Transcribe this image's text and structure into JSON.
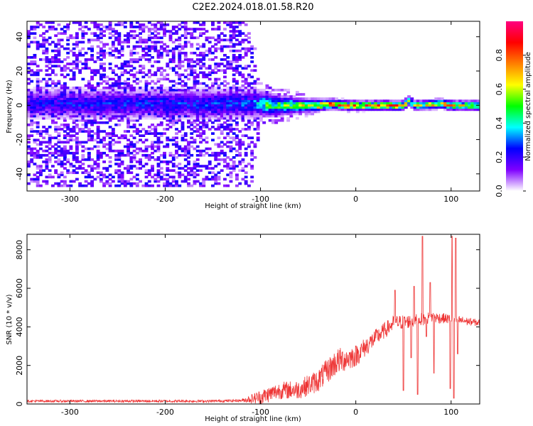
{
  "figure_title": "C2E2.2024.018.01.58.R20",
  "chart_data": [
    {
      "type": "heatmap",
      "title": "C2E2.2024.018.01.58.R20",
      "xlabel": "Height of straight line (km)",
      "ylabel": "Frequency (Hz)",
      "xlim": [
        -345,
        130
      ],
      "ylim": [
        -50,
        49
      ],
      "x_ticks": [
        -300,
        -200,
        -100,
        0,
        100
      ],
      "x_tick_labels": [
        "-300",
        "-200",
        "-100",
        "0",
        "100"
      ],
      "y_ticks": [
        -40,
        -20,
        0,
        20,
        40
      ],
      "y_tick_labels": [
        "-40",
        "-20",
        "0",
        "20",
        "40"
      ],
      "colorbar": {
        "label": "Normalized spectral amplitude",
        "range": [
          0,
          1
        ],
        "ticks": [
          0.0,
          0.2,
          0.4,
          0.6,
          0.8
        ],
        "tick_labels": [
          "0.0",
          "0.2",
          "0.4",
          "0.6",
          "0.8"
        ],
        "colormap": [
          "#ffffff",
          "#7f00ff",
          "#0000ff",
          "#00ffff",
          "#00ff00",
          "#ffff00",
          "#ff7f00",
          "#ff0000",
          "#ff0080"
        ]
      },
      "band": {
        "center_hz": [
          {
            "x": -345,
            "y": 1
          },
          {
            "x": -100,
            "y": 1
          },
          {
            "x": -80,
            "y": 0
          },
          {
            "x": -40,
            "y": 0
          },
          {
            "x": -25,
            "y": 1
          },
          {
            "x": -10,
            "y": 0
          },
          {
            "x": 50,
            "y": 0
          },
          {
            "x": 56,
            "y": 3
          },
          {
            "x": 62,
            "y": 0
          },
          {
            "x": 90,
            "y": 1
          },
          {
            "x": 100,
            "y": 0
          },
          {
            "x": 130,
            "y": 0
          }
        ],
        "core_halfwidth_hz": [
          {
            "x": -345,
            "y": 6
          },
          {
            "x": -110,
            "y": 6
          },
          {
            "x": -60,
            "y": 3
          },
          {
            "x": -20,
            "y": 2
          },
          {
            "x": 130,
            "y": 2
          }
        ],
        "peak_amplitude": [
          {
            "x": -345,
            "y": 0.25
          },
          {
            "x": -110,
            "y": 0.3
          },
          {
            "x": -90,
            "y": 0.55
          },
          {
            "x": -60,
            "y": 0.65
          },
          {
            "x": -30,
            "y": 0.85
          },
          {
            "x": 0,
            "y": 0.85
          },
          {
            "x": 50,
            "y": 0.8
          },
          {
            "x": 56,
            "y": 0.6
          },
          {
            "x": 100,
            "y": 0.8
          },
          {
            "x": 130,
            "y": 0.7
          }
        ],
        "scatter_halfwidth_hz": [
          {
            "x": -345,
            "y": 49
          },
          {
            "x": -110,
            "y": 49
          },
          {
            "x": -100,
            "y": 12
          },
          {
            "x": -60,
            "y": 8
          },
          {
            "x": -40,
            "y": 4
          },
          {
            "x": 130,
            "y": 3
          }
        ],
        "scatter_amplitude": [
          {
            "x": -345,
            "y": 0.12
          },
          {
            "x": -110,
            "y": 0.12
          },
          {
            "x": -90,
            "y": 0.08
          },
          {
            "x": -40,
            "y": 0.03
          },
          {
            "x": 130,
            "y": 0.02
          }
        ]
      }
    },
    {
      "type": "line",
      "xlabel": "Height of straight line (km)",
      "ylabel": "SNR (10 * v/v)",
      "xlim": [
        -345,
        130
      ],
      "ylim": [
        0,
        8800
      ],
      "x_ticks": [
        -300,
        -200,
        -100,
        0,
        100
      ],
      "x_tick_labels": [
        "-300",
        "-200",
        "-100",
        "0",
        "100"
      ],
      "y_ticks": [
        0,
        2000,
        4000,
        6000,
        8000
      ],
      "y_tick_labels": [
        "0",
        "2000",
        "4000",
        "6000",
        "8000"
      ],
      "series": [
        {
          "color": "#ee3333",
          "trend": [
            {
              "x": -345,
              "y": 150
            },
            {
              "x": -250,
              "y": 150
            },
            {
              "x": -150,
              "y": 150
            },
            {
              "x": -120,
              "y": 180
            },
            {
              "x": -100,
              "y": 350
            },
            {
              "x": -80,
              "y": 700
            },
            {
              "x": -60,
              "y": 750
            },
            {
              "x": -40,
              "y": 1200
            },
            {
              "x": -20,
              "y": 2200
            },
            {
              "x": 0,
              "y": 2500
            },
            {
              "x": 20,
              "y": 3400
            },
            {
              "x": 40,
              "y": 4200
            },
            {
              "x": 60,
              "y": 4300
            },
            {
              "x": 80,
              "y": 4500
            },
            {
              "x": 100,
              "y": 4400
            },
            {
              "x": 130,
              "y": 4200
            }
          ],
          "noise_amplitude": [
            {
              "x": -345,
              "y": 60
            },
            {
              "x": -120,
              "y": 70
            },
            {
              "x": -100,
              "y": 400
            },
            {
              "x": -60,
              "y": 500
            },
            {
              "x": -20,
              "y": 700
            },
            {
              "x": 20,
              "y": 450
            },
            {
              "x": 60,
              "y": 350
            },
            {
              "x": 100,
              "y": 250
            },
            {
              "x": 130,
              "y": 180
            }
          ],
          "spikes": [
            {
              "x": 41,
              "y": 5900
            },
            {
              "x": 50,
              "y": 700
            },
            {
              "x": 58,
              "y": 2400
            },
            {
              "x": 61,
              "y": 6100
            },
            {
              "x": 65,
              "y": 500
            },
            {
              "x": 70,
              "y": 8700
            },
            {
              "x": 74,
              "y": 3500
            },
            {
              "x": 78,
              "y": 6300
            },
            {
              "x": 82,
              "y": 1600
            },
            {
              "x": 99,
              "y": 800
            },
            {
              "x": 101,
              "y": 8700
            },
            {
              "x": 103,
              "y": 300
            },
            {
              "x": 105,
              "y": 8600
            },
            {
              "x": 107,
              "y": 2600
            }
          ]
        }
      ]
    }
  ]
}
